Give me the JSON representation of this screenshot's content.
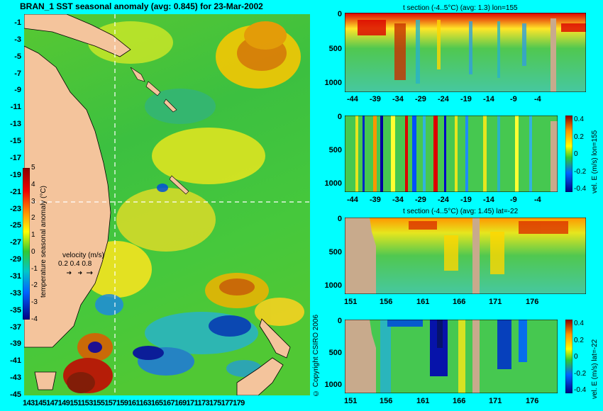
{
  "main_map": {
    "title": "BRAN_1 SST seasonal anomaly (avg: 0.845) for 23-Mar-2002",
    "lat_ticks": [
      "-1",
      "-3",
      "-5",
      "-7",
      "-9",
      "-11",
      "-13",
      "-15",
      "-17",
      "-19",
      "-21",
      "-23",
      "-25",
      "-27",
      "-29",
      "-31",
      "-33",
      "-35",
      "-37",
      "-39",
      "-41",
      "-43",
      "-45"
    ],
    "lon_ticks_text": "143145147149151153155157159161163165167169171173175177179",
    "colorbar": {
      "label": "temperature seasonal anomaly (°C)",
      "ticks": [
        "5",
        "4",
        "3",
        "2",
        "1",
        "0",
        "-1",
        "-2",
        "-3",
        "-4"
      ]
    },
    "velocity_legend": {
      "title": "velocity (m/s)",
      "scale": "0.2 0.4 0.8"
    },
    "copyright": "© Copyright CSIRO 2006"
  },
  "panel1": {
    "title": "t section (-4..5°C) (avg: 1.3) lon=155",
    "depth_ticks": [
      "0",
      "500",
      "1000"
    ],
    "lat_ticks": [
      "-44",
      "-39",
      "-34",
      "-29",
      "-24",
      "-19",
      "-14",
      "-9",
      "-4"
    ]
  },
  "panel2": {
    "depth_ticks": [
      "0",
      "500",
      "1000"
    ],
    "lat_ticks": [
      "-44",
      "-39",
      "-34",
      "-29",
      "-24",
      "-19",
      "-14",
      "-9",
      "-4"
    ],
    "colorbar_label": "vel. E (m/s) lon=155",
    "colorbar_ticks": [
      "0.4",
      "0.2",
      "0",
      "-0.2",
      "-0.4"
    ]
  },
  "panel3": {
    "title": "t section (-4..5°C) (avg: 1.45) lat=-22",
    "depth_ticks": [
      "0",
      "500",
      "1000"
    ],
    "lon_ticks": [
      "151",
      "156",
      "161",
      "166",
      "171",
      "176"
    ]
  },
  "panel4": {
    "depth_ticks": [
      "0",
      "500",
      "1000"
    ],
    "lon_ticks": [
      "151",
      "156",
      "161",
      "166",
      "171",
      "176"
    ],
    "colorbar_label": "vel. E (m/s) lat=-22",
    "colorbar_ticks": [
      "0.4",
      "0.2",
      "0",
      "-0.2",
      "-0.4"
    ]
  },
  "colors": {
    "background": "#00ffff",
    "land": "#f4c49c",
    "section_land": "#c8aa8c",
    "ocean_base": "#3cc83c"
  }
}
